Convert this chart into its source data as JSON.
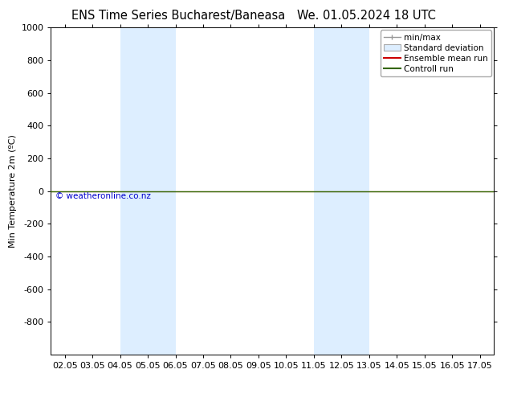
{
  "title_left": "ENS Time Series Bucharest/Baneasa",
  "title_right": "We. 01.05.2024 18 UTC",
  "ylabel": "Min Temperature 2m (ºC)",
  "ylim_top": -1000,
  "ylim_bottom": 1000,
  "yticks": [
    -800,
    -600,
    -400,
    -200,
    0,
    200,
    400,
    600,
    800,
    1000
  ],
  "xtick_labels": [
    "02.05",
    "03.05",
    "04.05",
    "05.05",
    "06.05",
    "07.05",
    "08.05",
    "09.05",
    "10.05",
    "11.05",
    "12.05",
    "13.05",
    "14.05",
    "15.05",
    "16.05",
    "17.05"
  ],
  "xtick_positions": [
    0,
    1,
    2,
    3,
    4,
    5,
    6,
    7,
    8,
    9,
    10,
    11,
    12,
    13,
    14,
    15
  ],
  "shade_bands": [
    [
      2,
      3
    ],
    [
      3,
      4
    ],
    [
      9,
      10
    ],
    [
      10,
      11
    ]
  ],
  "shade_color": "#ddeeff",
  "green_line_y": 0,
  "green_line_color": "#336600",
  "red_line_color": "#cc0000",
  "watermark": "© weatheronline.co.nz",
  "watermark_color": "#0000cc",
  "bg_color": "#ffffff",
  "legend_items": [
    "min/max",
    "Standard deviation",
    "Ensemble mean run",
    "Controll run"
  ],
  "legend_line_colors": [
    "#999999",
    "#cccccc",
    "#cc0000",
    "#336600"
  ],
  "title_fontsize": 10.5,
  "ylabel_fontsize": 8,
  "tick_fontsize": 8,
  "legend_fontsize": 7.5
}
